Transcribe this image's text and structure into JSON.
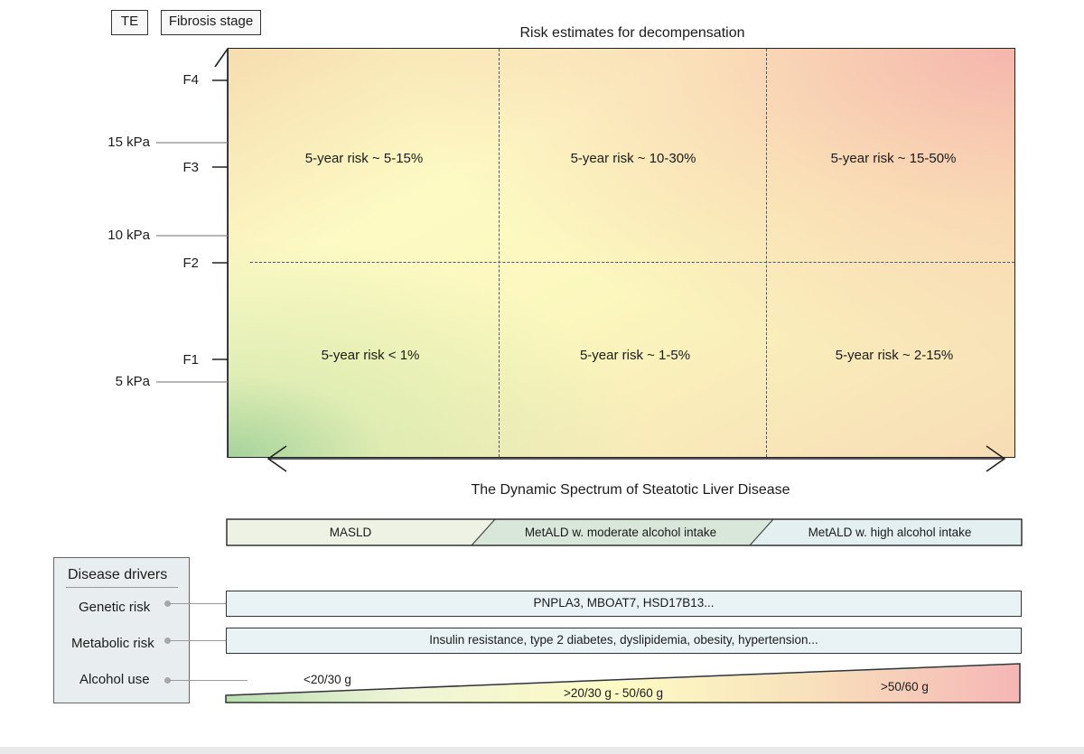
{
  "header": {
    "te_label": "TE",
    "fibrosis_label": "Fibrosis stage",
    "risk_title": "Risk estimates for decompensation"
  },
  "y_axis": {
    "stages": [
      "F4",
      "F3",
      "F2",
      "F1"
    ],
    "kpa": [
      "15 kPa",
      "10 kPa",
      "5 kPa"
    ]
  },
  "matrix": {
    "upper": [
      "5-year risk ~ 5-15%",
      "5-year risk ~ 10-30%",
      "5-year risk ~ 15-50%"
    ],
    "lower": [
      "5-year risk < 1%",
      "5-year risk ~ 1-5%",
      "5-year risk ~ 2-15%"
    ]
  },
  "spectrum": {
    "title": "The Dynamic Spectrum of Steatotic Liver Disease",
    "segments": [
      "MASLD",
      "MetALD w. moderate alcohol intake",
      "MetALD w. high alcohol intake"
    ],
    "colors": [
      "#eef2e4",
      "#d9e6da",
      "#e4eff2"
    ]
  },
  "drivers": {
    "title": "Disease drivers",
    "genetic_label": "Genetic risk",
    "metabolic_label": "Metabolic risk",
    "alcohol_label": "Alcohol use",
    "genetic_text": "PNPLA3, MBOAT7, HSD17B13...",
    "metabolic_text": "Insulin resistance, type 2 diabetes, dyslipidemia, obesity, hypertension...",
    "alcohol_levels": [
      "<20/30 g",
      ">20/30 g -  50/60 g",
      ">50/60 g"
    ]
  }
}
